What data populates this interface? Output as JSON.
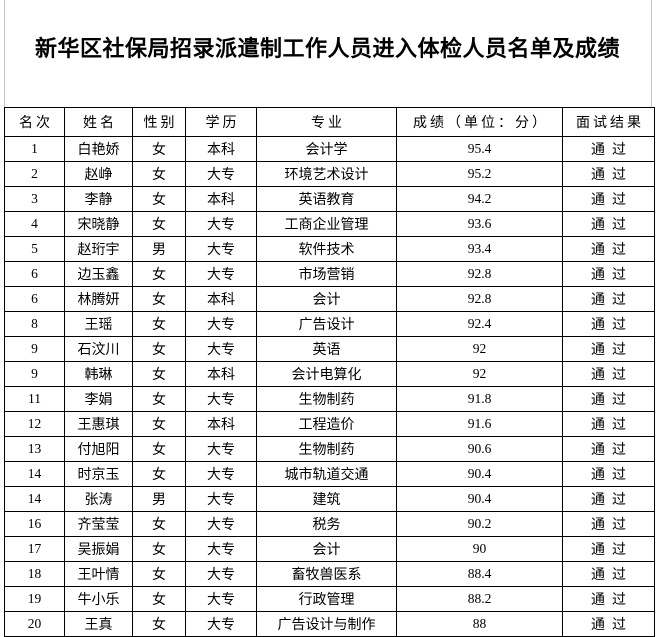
{
  "title": "新华区社保局招录派遣制工作人员进入体检人员名单及成绩",
  "colors": {
    "table_border": "#000000",
    "page_edge_line": "#c9c9c9",
    "background": "#ffffff",
    "text": "#000000"
  },
  "table": {
    "columns": [
      "名次",
      "姓名",
      "性别",
      "学历",
      "专业",
      "成绩（单位：分）",
      "面试结果"
    ],
    "rows": [
      [
        "1",
        "白艳娇",
        "女",
        "本科",
        "会计学",
        "95.4",
        "通过"
      ],
      [
        "2",
        "赵峥",
        "女",
        "大专",
        "环境艺术设计",
        "95.2",
        "通过"
      ],
      [
        "3",
        "李静",
        "女",
        "本科",
        "英语教育",
        "94.2",
        "通过"
      ],
      [
        "4",
        "宋晓静",
        "女",
        "大专",
        "工商企业管理",
        "93.6",
        "通过"
      ],
      [
        "5",
        "赵珩宇",
        "男",
        "大专",
        "软件技术",
        "93.4",
        "通过"
      ],
      [
        "6",
        "边玉鑫",
        "女",
        "大专",
        "市场营销",
        "92.8",
        "通过"
      ],
      [
        "6",
        "林腾妍",
        "女",
        "本科",
        "会计",
        "92.8",
        "通过"
      ],
      [
        "8",
        "王瑶",
        "女",
        "大专",
        "广告设计",
        "92.4",
        "通过"
      ],
      [
        "9",
        "石汶川",
        "女",
        "大专",
        "英语",
        "92",
        "通过"
      ],
      [
        "9",
        "韩琳",
        "女",
        "本科",
        "会计电算化",
        "92",
        "通过"
      ],
      [
        "11",
        "李娟",
        "女",
        "大专",
        "生物制药",
        "91.8",
        "通过"
      ],
      [
        "12",
        "王惠琪",
        "女",
        "本科",
        "工程造价",
        "91.6",
        "通过"
      ],
      [
        "13",
        "付旭阳",
        "女",
        "大专",
        "生物制药",
        "90.6",
        "通过"
      ],
      [
        "14",
        "时京玉",
        "女",
        "大专",
        "城市轨道交通",
        "90.4",
        "通过"
      ],
      [
        "14",
        "张涛",
        "男",
        "大专",
        "建筑",
        "90.4",
        "通过"
      ],
      [
        "16",
        "齐莹莹",
        "女",
        "大专",
        "税务",
        "90.2",
        "通过"
      ],
      [
        "17",
        "吴振娟",
        "女",
        "大专",
        "会计",
        "90",
        "通过"
      ],
      [
        "18",
        "王叶情",
        "女",
        "大专",
        "畜牧兽医系",
        "88.4",
        "通过"
      ],
      [
        "19",
        "牛小乐",
        "女",
        "大专",
        "行政管理",
        "88.2",
        "通过"
      ],
      [
        "20",
        "王真",
        "女",
        "大专",
        "广告设计与制作",
        "88",
        "通过"
      ]
    ]
  }
}
